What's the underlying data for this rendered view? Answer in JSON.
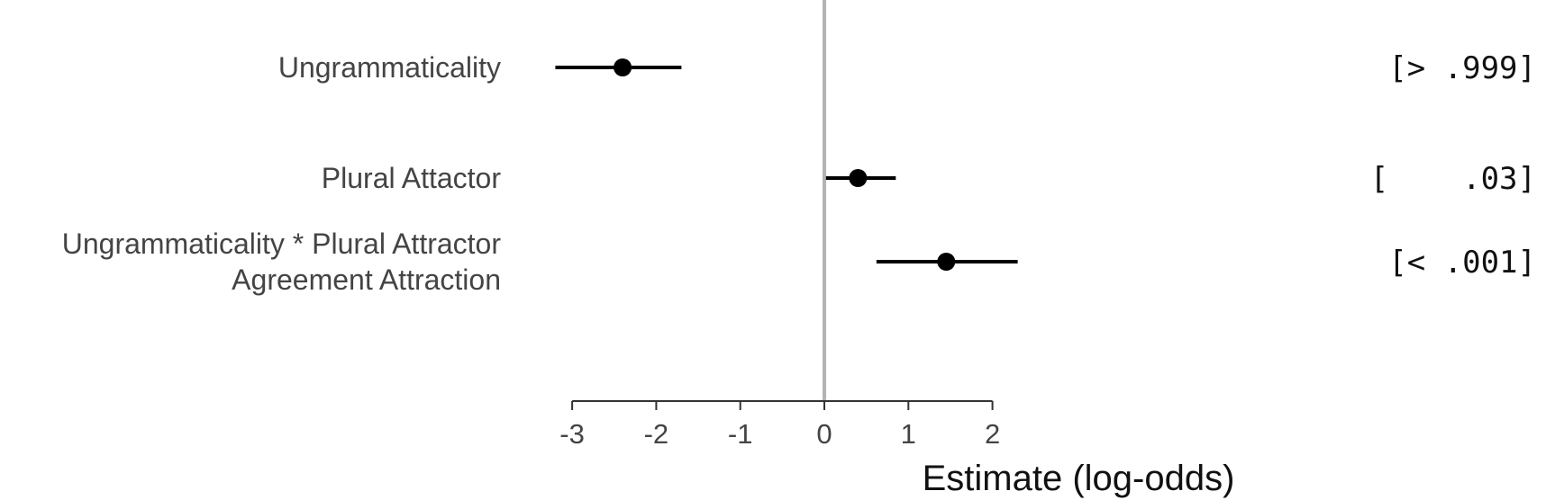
{
  "chart_data": {
    "type": "scatter",
    "subtype": "coefficient-plot",
    "title": "",
    "xlabel": "Estimate (log-odds)",
    "ylabel": "",
    "xlim": [
      -3,
      2
    ],
    "xticks": [
      -3,
      -2,
      -1,
      0,
      1,
      2
    ],
    "xtick_labels": [
      "-3",
      "-2",
      "-1",
      "0",
      "1",
      "2"
    ],
    "reference_line": 0,
    "reference_line_color": "#b3b3b3",
    "point_color": "#000000",
    "grid": false,
    "legend": "none",
    "series": [
      {
        "label": [
          "Ungrammaticality"
        ],
        "estimate": -2.4,
        "ci_low": -3.2,
        "ci_high": -1.7,
        "p_text": "[> .999]"
      },
      {
        "label": [
          "Plural Attactor"
        ],
        "estimate": 0.4,
        "ci_low": 0.02,
        "ci_high": 0.85,
        "p_text": "[    .03]"
      },
      {
        "label": [
          "Ungrammaticality * Plural Attractor",
          "Agreement Attraction"
        ],
        "estimate": 1.45,
        "ci_low": 0.62,
        "ci_high": 2.3,
        "p_text": "[< .001]"
      }
    ]
  }
}
